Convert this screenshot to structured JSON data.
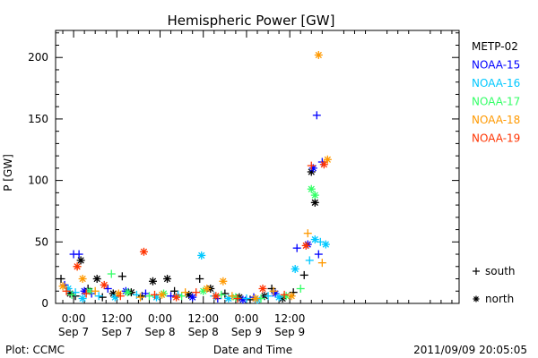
{
  "chart_data": {
    "type": "scatter",
    "title": "Hemispheric Power [GW]",
    "ylabel": "P [GW]",
    "xlabel": "Date and Time",
    "ylim": [
      0,
      222
    ],
    "xlim": [
      -5,
      107
    ],
    "x_unit": "hours since 2011-09-07 00:00 UT",
    "y_ticks": [
      0,
      50,
      100,
      150,
      200
    ],
    "y_tick_labels": [
      "0",
      "50",
      "100",
      "150",
      "200"
    ],
    "x_ticks": [
      {
        "x": 0,
        "time": "0:00",
        "date": "Sep 7"
      },
      {
        "x": 12,
        "time": "12:00",
        "date": "Sep 7"
      },
      {
        "x": 24,
        "time": "0:00",
        "date": "Sep 8"
      },
      {
        "x": 36,
        "time": "12:00",
        "date": "Sep 8"
      },
      {
        "x": 48,
        "time": "0:00",
        "date": "Sep 9"
      },
      {
        "x": 60,
        "time": "12:00",
        "date": "Sep 9"
      }
    ],
    "marker_legend": [
      {
        "symbol": "+",
        "label": "south"
      },
      {
        "symbol": "*",
        "label": "north"
      }
    ],
    "series": [
      {
        "name": "METP-02",
        "color": "#000000",
        "points": [
          {
            "x": -3.5,
            "y": 20,
            "m": "+"
          },
          {
            "x": -1,
            "y": 8,
            "m": "*"
          },
          {
            "x": 0.5,
            "y": 6,
            "m": "+"
          },
          {
            "x": 2,
            "y": 35,
            "m": "*"
          },
          {
            "x": 4,
            "y": 12,
            "m": "+"
          },
          {
            "x": 6.5,
            "y": 20,
            "m": "*"
          },
          {
            "x": 8,
            "y": 5,
            "m": "+"
          },
          {
            "x": 11,
            "y": 8,
            "m": "*"
          },
          {
            "x": 13.5,
            "y": 22,
            "m": "+"
          },
          {
            "x": 16,
            "y": 9,
            "m": "*"
          },
          {
            "x": 19,
            "y": 6,
            "m": "+"
          },
          {
            "x": 22,
            "y": 18,
            "m": "*"
          },
          {
            "x": 26,
            "y": 20,
            "m": "*"
          },
          {
            "x": 28,
            "y": 10,
            "m": "+"
          },
          {
            "x": 32,
            "y": 7,
            "m": "*"
          },
          {
            "x": 35,
            "y": 20,
            "m": "+"
          },
          {
            "x": 38,
            "y": 12,
            "m": "*"
          },
          {
            "x": 42,
            "y": 8,
            "m": "+"
          },
          {
            "x": 46,
            "y": 5,
            "m": "*"
          },
          {
            "x": 49,
            "y": 3,
            "m": "+"
          },
          {
            "x": 53,
            "y": 6,
            "m": "*"
          },
          {
            "x": 55,
            "y": 12,
            "m": "+"
          },
          {
            "x": 58,
            "y": 4,
            "m": "*"
          },
          {
            "x": 61,
            "y": 9,
            "m": "+"
          },
          {
            "x": 64,
            "y": 23,
            "m": "+"
          },
          {
            "x": 66,
            "y": 107,
            "m": "*"
          },
          {
            "x": 67,
            "y": 82,
            "m": "*"
          }
        ]
      },
      {
        "name": "NOAA-15",
        "color": "#0000ff",
        "points": [
          {
            "x": -2.5,
            "y": 15,
            "m": "+"
          },
          {
            "x": 0,
            "y": 40,
            "m": "+"
          },
          {
            "x": 1.5,
            "y": 40,
            "m": "+"
          },
          {
            "x": 3,
            "y": 10,
            "m": "*"
          },
          {
            "x": 5,
            "y": 8,
            "m": "+"
          },
          {
            "x": 9.5,
            "y": 12,
            "m": "+"
          },
          {
            "x": 14.5,
            "y": 10,
            "m": "*"
          },
          {
            "x": 20,
            "y": 8,
            "m": "+"
          },
          {
            "x": 27,
            "y": 6,
            "m": "+"
          },
          {
            "x": 33,
            "y": 5,
            "m": "*"
          },
          {
            "x": 40,
            "y": 4,
            "m": "+"
          },
          {
            "x": 47,
            "y": 3,
            "m": "*"
          },
          {
            "x": 50,
            "y": 5,
            "m": "+"
          },
          {
            "x": 56,
            "y": 8,
            "m": "*"
          },
          {
            "x": 62,
            "y": 45,
            "m": "+"
          },
          {
            "x": 65,
            "y": 48,
            "m": "*"
          },
          {
            "x": 66.5,
            "y": 110,
            "m": "*"
          },
          {
            "x": 67.5,
            "y": 153,
            "m": "+"
          },
          {
            "x": 68,
            "y": 40,
            "m": "+"
          },
          {
            "x": 69,
            "y": 115,
            "m": "+"
          }
        ]
      },
      {
        "name": "NOAA-16",
        "color": "#00c8ff",
        "points": [
          {
            "x": -1.5,
            "y": 12,
            "m": "*"
          },
          {
            "x": 0.5,
            "y": 9,
            "m": "+"
          },
          {
            "x": 2.5,
            "y": 4,
            "m": "*"
          },
          {
            "x": 7,
            "y": 6,
            "m": "+"
          },
          {
            "x": 11.5,
            "y": 5,
            "m": "*"
          },
          {
            "x": 17.5,
            "y": 7,
            "m": "+"
          },
          {
            "x": 23,
            "y": 5,
            "m": "*"
          },
          {
            "x": 29,
            "y": 7,
            "m": "+"
          },
          {
            "x": 35.5,
            "y": 39,
            "m": "*"
          },
          {
            "x": 39,
            "y": 6,
            "m": "+"
          },
          {
            "x": 43,
            "y": 4,
            "m": "*"
          },
          {
            "x": 48,
            "y": 4,
            "m": "+"
          },
          {
            "x": 51,
            "y": 3,
            "m": "*"
          },
          {
            "x": 54,
            "y": 6,
            "m": "+"
          },
          {
            "x": 57,
            "y": 5,
            "m": "*"
          },
          {
            "x": 61.5,
            "y": 28,
            "m": "*"
          },
          {
            "x": 65.5,
            "y": 35,
            "m": "+"
          },
          {
            "x": 67,
            "y": 52,
            "m": "*"
          },
          {
            "x": 68.5,
            "y": 50,
            "m": "+"
          },
          {
            "x": 70,
            "y": 48,
            "m": "*"
          }
        ]
      },
      {
        "name": "NOAA-17",
        "color": "#33ff66",
        "points": [
          {
            "x": -0.5,
            "y": 7,
            "m": "+"
          },
          {
            "x": 4.5,
            "y": 10,
            "m": "*"
          },
          {
            "x": 10.5,
            "y": 24,
            "m": "+"
          },
          {
            "x": 15,
            "y": 9,
            "m": "*"
          },
          {
            "x": 21,
            "y": 6,
            "m": "+"
          },
          {
            "x": 25,
            "y": 8,
            "m": "*"
          },
          {
            "x": 30,
            "y": 6,
            "m": "+"
          },
          {
            "x": 36,
            "y": 10,
            "m": "*"
          },
          {
            "x": 41,
            "y": 7,
            "m": "+"
          },
          {
            "x": 45,
            "y": 5,
            "m": "*"
          },
          {
            "x": 52,
            "y": 4,
            "m": "+"
          },
          {
            "x": 59,
            "y": 6,
            "m": "*"
          },
          {
            "x": 63,
            "y": 12,
            "m": "+"
          },
          {
            "x": 66,
            "y": 93,
            "m": "*"
          },
          {
            "x": 67,
            "y": 88,
            "m": "*"
          }
        ]
      },
      {
        "name": "NOAA-18",
        "color": "#ff9900",
        "points": [
          {
            "x": -3,
            "y": 14,
            "m": "*"
          },
          {
            "x": 1,
            "y": 30,
            "m": "+"
          },
          {
            "x": 2.5,
            "y": 20,
            "m": "*"
          },
          {
            "x": 6,
            "y": 10,
            "m": "+"
          },
          {
            "x": 12.5,
            "y": 8,
            "m": "*"
          },
          {
            "x": 18.5,
            "y": 5,
            "m": "+"
          },
          {
            "x": 24.5,
            "y": 7,
            "m": "*"
          },
          {
            "x": 31,
            "y": 9,
            "m": "+"
          },
          {
            "x": 37,
            "y": 12,
            "m": "*"
          },
          {
            "x": 41.5,
            "y": 18,
            "m": "*"
          },
          {
            "x": 44,
            "y": 6,
            "m": "+"
          },
          {
            "x": 50.5,
            "y": 4,
            "m": "*"
          },
          {
            "x": 55.5,
            "y": 10,
            "m": "+"
          },
          {
            "x": 60.5,
            "y": 6,
            "m": "*"
          },
          {
            "x": 65,
            "y": 57,
            "m": "+"
          },
          {
            "x": 68,
            "y": 202,
            "m": "*"
          },
          {
            "x": 69,
            "y": 33,
            "m": "+"
          },
          {
            "x": 70.5,
            "y": 117,
            "m": "*"
          }
        ]
      },
      {
        "name": "NOAA-19",
        "color": "#ff3300",
        "points": [
          {
            "x": -2,
            "y": 10,
            "m": "+"
          },
          {
            "x": 1,
            "y": 30,
            "m": "*"
          },
          {
            "x": 3.5,
            "y": 8,
            "m": "+"
          },
          {
            "x": 8.5,
            "y": 15,
            "m": "*"
          },
          {
            "x": 13,
            "y": 6,
            "m": "+"
          },
          {
            "x": 19.5,
            "y": 42,
            "m": "*"
          },
          {
            "x": 22.5,
            "y": 7,
            "m": "+"
          },
          {
            "x": 28.5,
            "y": 5,
            "m": "*"
          },
          {
            "x": 34,
            "y": 9,
            "m": "+"
          },
          {
            "x": 39.5,
            "y": 6,
            "m": "*"
          },
          {
            "x": 45.5,
            "y": 4,
            "m": "+"
          },
          {
            "x": 52.5,
            "y": 12,
            "m": "*"
          },
          {
            "x": 58.5,
            "y": 7,
            "m": "+"
          },
          {
            "x": 64.5,
            "y": 47,
            "m": "*"
          },
          {
            "x": 66,
            "y": 112,
            "m": "+"
          },
          {
            "x": 69.5,
            "y": 113,
            "m": "*"
          }
        ]
      }
    ]
  },
  "footer": {
    "left": "Plot: CCMC",
    "right": "2011/09/09 20:05:05"
  }
}
